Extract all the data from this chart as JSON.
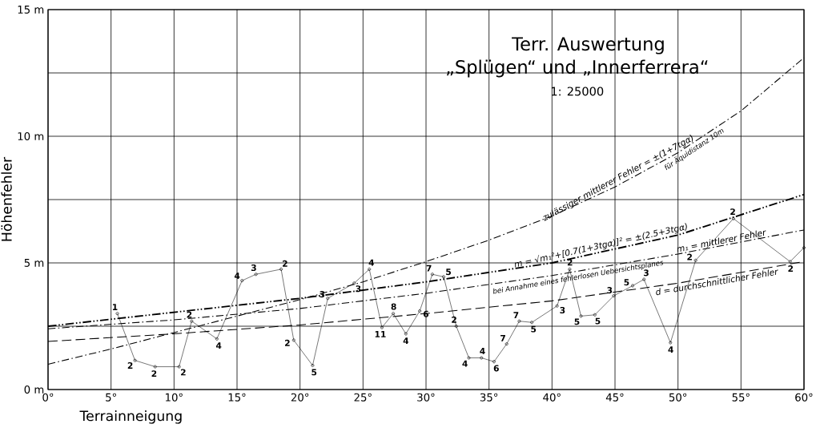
{
  "chart_data": {
    "type": "line",
    "title": "Terr. Auswertung",
    "subtitle": "„Splügen“ und „Innerferrera“",
    "xlabel": "Terrainneigung",
    "ylabel": "Höhenfehler",
    "xlim": [
      0,
      60
    ],
    "ylim": [
      0,
      15
    ],
    "xticks": [
      {
        "value": 0,
        "label": "0°"
      },
      {
        "value": 5,
        "label": "5°"
      },
      {
        "value": 10,
        "label": "10°"
      },
      {
        "value": 15,
        "label": "15°"
      },
      {
        "value": 20,
        "label": "20°"
      },
      {
        "value": 25,
        "label": "25°"
      },
      {
        "value": 30,
        "label": "30°"
      },
      {
        "value": 35,
        "label": "35°"
      },
      {
        "value": 40,
        "label": "40°"
      },
      {
        "value": 45,
        "label": "45°"
      },
      {
        "value": 50,
        "label": "50°"
      },
      {
        "value": 55,
        "label": "55°"
      },
      {
        "value": 60,
        "label": "60°"
      }
    ],
    "yticks": [
      {
        "value": 0,
        "label": "0 m"
      },
      {
        "value": 2.5,
        "label": null
      },
      {
        "value": 5,
        "label": "5 m"
      },
      {
        "value": 7.5,
        "label": null
      },
      {
        "value": 10,
        "label": "10 m"
      },
      {
        "value": 12.5,
        "label": null
      },
      {
        "value": 15,
        "label": "15 m"
      }
    ],
    "grid": true,
    "series": [
      {
        "color": "#000000",
        "marker": "circle",
        "line_style": "solid",
        "x": [
          5.5,
          6.9,
          8.5,
          10.4,
          11.4,
          13.4,
          15.4,
          16.5,
          18.5,
          19.5,
          21.0,
          22.2,
          24.3,
          25.5,
          26.5,
          27.4,
          28.4,
          29.5,
          30.5,
          31.4,
          32.4,
          33.4,
          34.4,
          35.4,
          36.4,
          37.4,
          38.4,
          40.4,
          41.4,
          42.3,
          43.4,
          44.9,
          46.4,
          47.3,
          49.4,
          51.4,
          54.4,
          58.9,
          60
        ],
        "values": [
          3.0,
          1.15,
          0.9,
          0.9,
          2.7,
          2.0,
          4.3,
          4.55,
          4.75,
          1.95,
          0.95,
          3.6,
          4.2,
          4.75,
          2.45,
          3.0,
          2.2,
          3.1,
          4.55,
          4.45,
          2.5,
          1.25,
          1.25,
          1.1,
          1.8,
          2.7,
          2.65,
          3.3,
          4.75,
          2.9,
          2.95,
          3.7,
          4.1,
          4.35,
          1.85,
          5.1,
          6.75,
          5.05,
          5.6
        ]
      },
      {
        "name": "zulässiger mittlerer Fehler = ±(1+7tgα)",
        "color": "#000000",
        "line_style": "dashdot",
        "x": [
          0,
          5,
          10,
          15,
          20,
          25,
          30,
          35,
          40,
          45,
          50,
          55,
          60
        ],
        "values": [
          1.0,
          1.6,
          2.25,
          2.9,
          3.55,
          4.25,
          5.05,
          5.9,
          6.85,
          8.0,
          9.35,
          11.0,
          13.1
        ]
      },
      {
        "name": "m = √m₁²+[0.7(1+3tgα)]² = ±(2.5+3tgα)",
        "color": "#000000",
        "line_style": "dashdotdot",
        "x": [
          0,
          10,
          20,
          30,
          40,
          50,
          60
        ],
        "values": [
          2.5,
          3.05,
          3.6,
          4.25,
          5.0,
          6.1,
          7.7
        ]
      },
      {
        "name": "m₁ = mittlerer Fehler",
        "color": "#000000",
        "line_style": "dashdot",
        "x": [
          0,
          10,
          20,
          30,
          40,
          50,
          60
        ],
        "values": [
          2.4,
          2.75,
          3.2,
          3.8,
          4.5,
          5.35,
          6.3
        ]
      },
      {
        "name": "d = durchschnittlicher Fehler",
        "color": "#000000",
        "line_style": "dashed",
        "x": [
          0,
          10,
          20,
          30,
          40,
          50,
          60
        ],
        "values": [
          1.9,
          2.2,
          2.55,
          3.0,
          3.5,
          4.2,
          5.05
        ]
      }
    ],
    "annotations": [
      "1: 25000",
      {
        "text": "für Äquidistanz 10m",
        "x": 51,
        "y": 9.7
      },
      {
        "text": "bei Annahme eines fehlerlosen Uebersichtsplanes",
        "x": 42,
        "y": 4.65
      },
      {
        "text": "1",
        "x": 5.5,
        "y": 3.0
      },
      {
        "text": "2",
        "x": 6.9,
        "y": 1.15
      },
      {
        "text": "2",
        "x": 8.5,
        "y": 0.9
      },
      {
        "text": "2",
        "x": 10.4,
        "y": 0.9
      },
      {
        "text": "2",
        "x": 11.4,
        "y": 2.7
      },
      {
        "text": "4",
        "x": 13.4,
        "y": 2.0
      },
      {
        "text": "4",
        "x": 15.4,
        "y": 4.3
      },
      {
        "text": "3",
        "x": 16.5,
        "y": 4.55
      },
      {
        "text": "2",
        "x": 18.5,
        "y": 4.75
      },
      {
        "text": "2",
        "x": 19.5,
        "y": 1.95
      },
      {
        "text": "5",
        "x": 21.0,
        "y": 0.95
      },
      {
        "text": "3",
        "x": 22.2,
        "y": 3.6
      },
      {
        "text": "3",
        "x": 24.3,
        "y": 4.2
      },
      {
        "text": "4",
        "x": 25.5,
        "y": 4.75
      },
      {
        "text": "11",
        "x": 26.5,
        "y": 2.45
      },
      {
        "text": "8",
        "x": 27.4,
        "y": 3.0
      },
      {
        "text": "4",
        "x": 28.4,
        "y": 2.2
      },
      {
        "text": "6",
        "x": 29.5,
        "y": 3.1
      },
      {
        "text": "7",
        "x": 30.5,
        "y": 4.55
      },
      {
        "text": "5",
        "x": 31.4,
        "y": 4.45
      },
      {
        "text": "2",
        "x": 32.4,
        "y": 2.5
      },
      {
        "text": "4",
        "x": 33.4,
        "y": 1.25
      },
      {
        "text": "4",
        "x": 34.4,
        "y": 1.25
      },
      {
        "text": "6",
        "x": 35.4,
        "y": 1.1
      },
      {
        "text": "7",
        "x": 36.4,
        "y": 1.8
      },
      {
        "text": "7",
        "x": 37.4,
        "y": 2.7
      },
      {
        "text": "5",
        "x": 38.4,
        "y": 2.65
      },
      {
        "text": "3",
        "x": 40.4,
        "y": 3.3
      },
      {
        "text": "2",
        "x": 41.4,
        "y": 4.75
      },
      {
        "text": "5",
        "x": 42.3,
        "y": 2.9
      },
      {
        "text": "5",
        "x": 43.4,
        "y": 2.95
      },
      {
        "text": "3",
        "x": 44.9,
        "y": 3.7
      },
      {
        "text": "5",
        "x": 46.4,
        "y": 4.1
      },
      {
        "text": "3",
        "x": 47.3,
        "y": 4.35
      },
      {
        "text": "4",
        "x": 49.4,
        "y": 1.85
      },
      {
        "text": "2",
        "x": 51.4,
        "y": 5.1
      },
      {
        "text": "2",
        "x": 54.4,
        "y": 6.75
      },
      {
        "text": "2",
        "x": 58.9,
        "y": 5.05
      }
    ]
  }
}
